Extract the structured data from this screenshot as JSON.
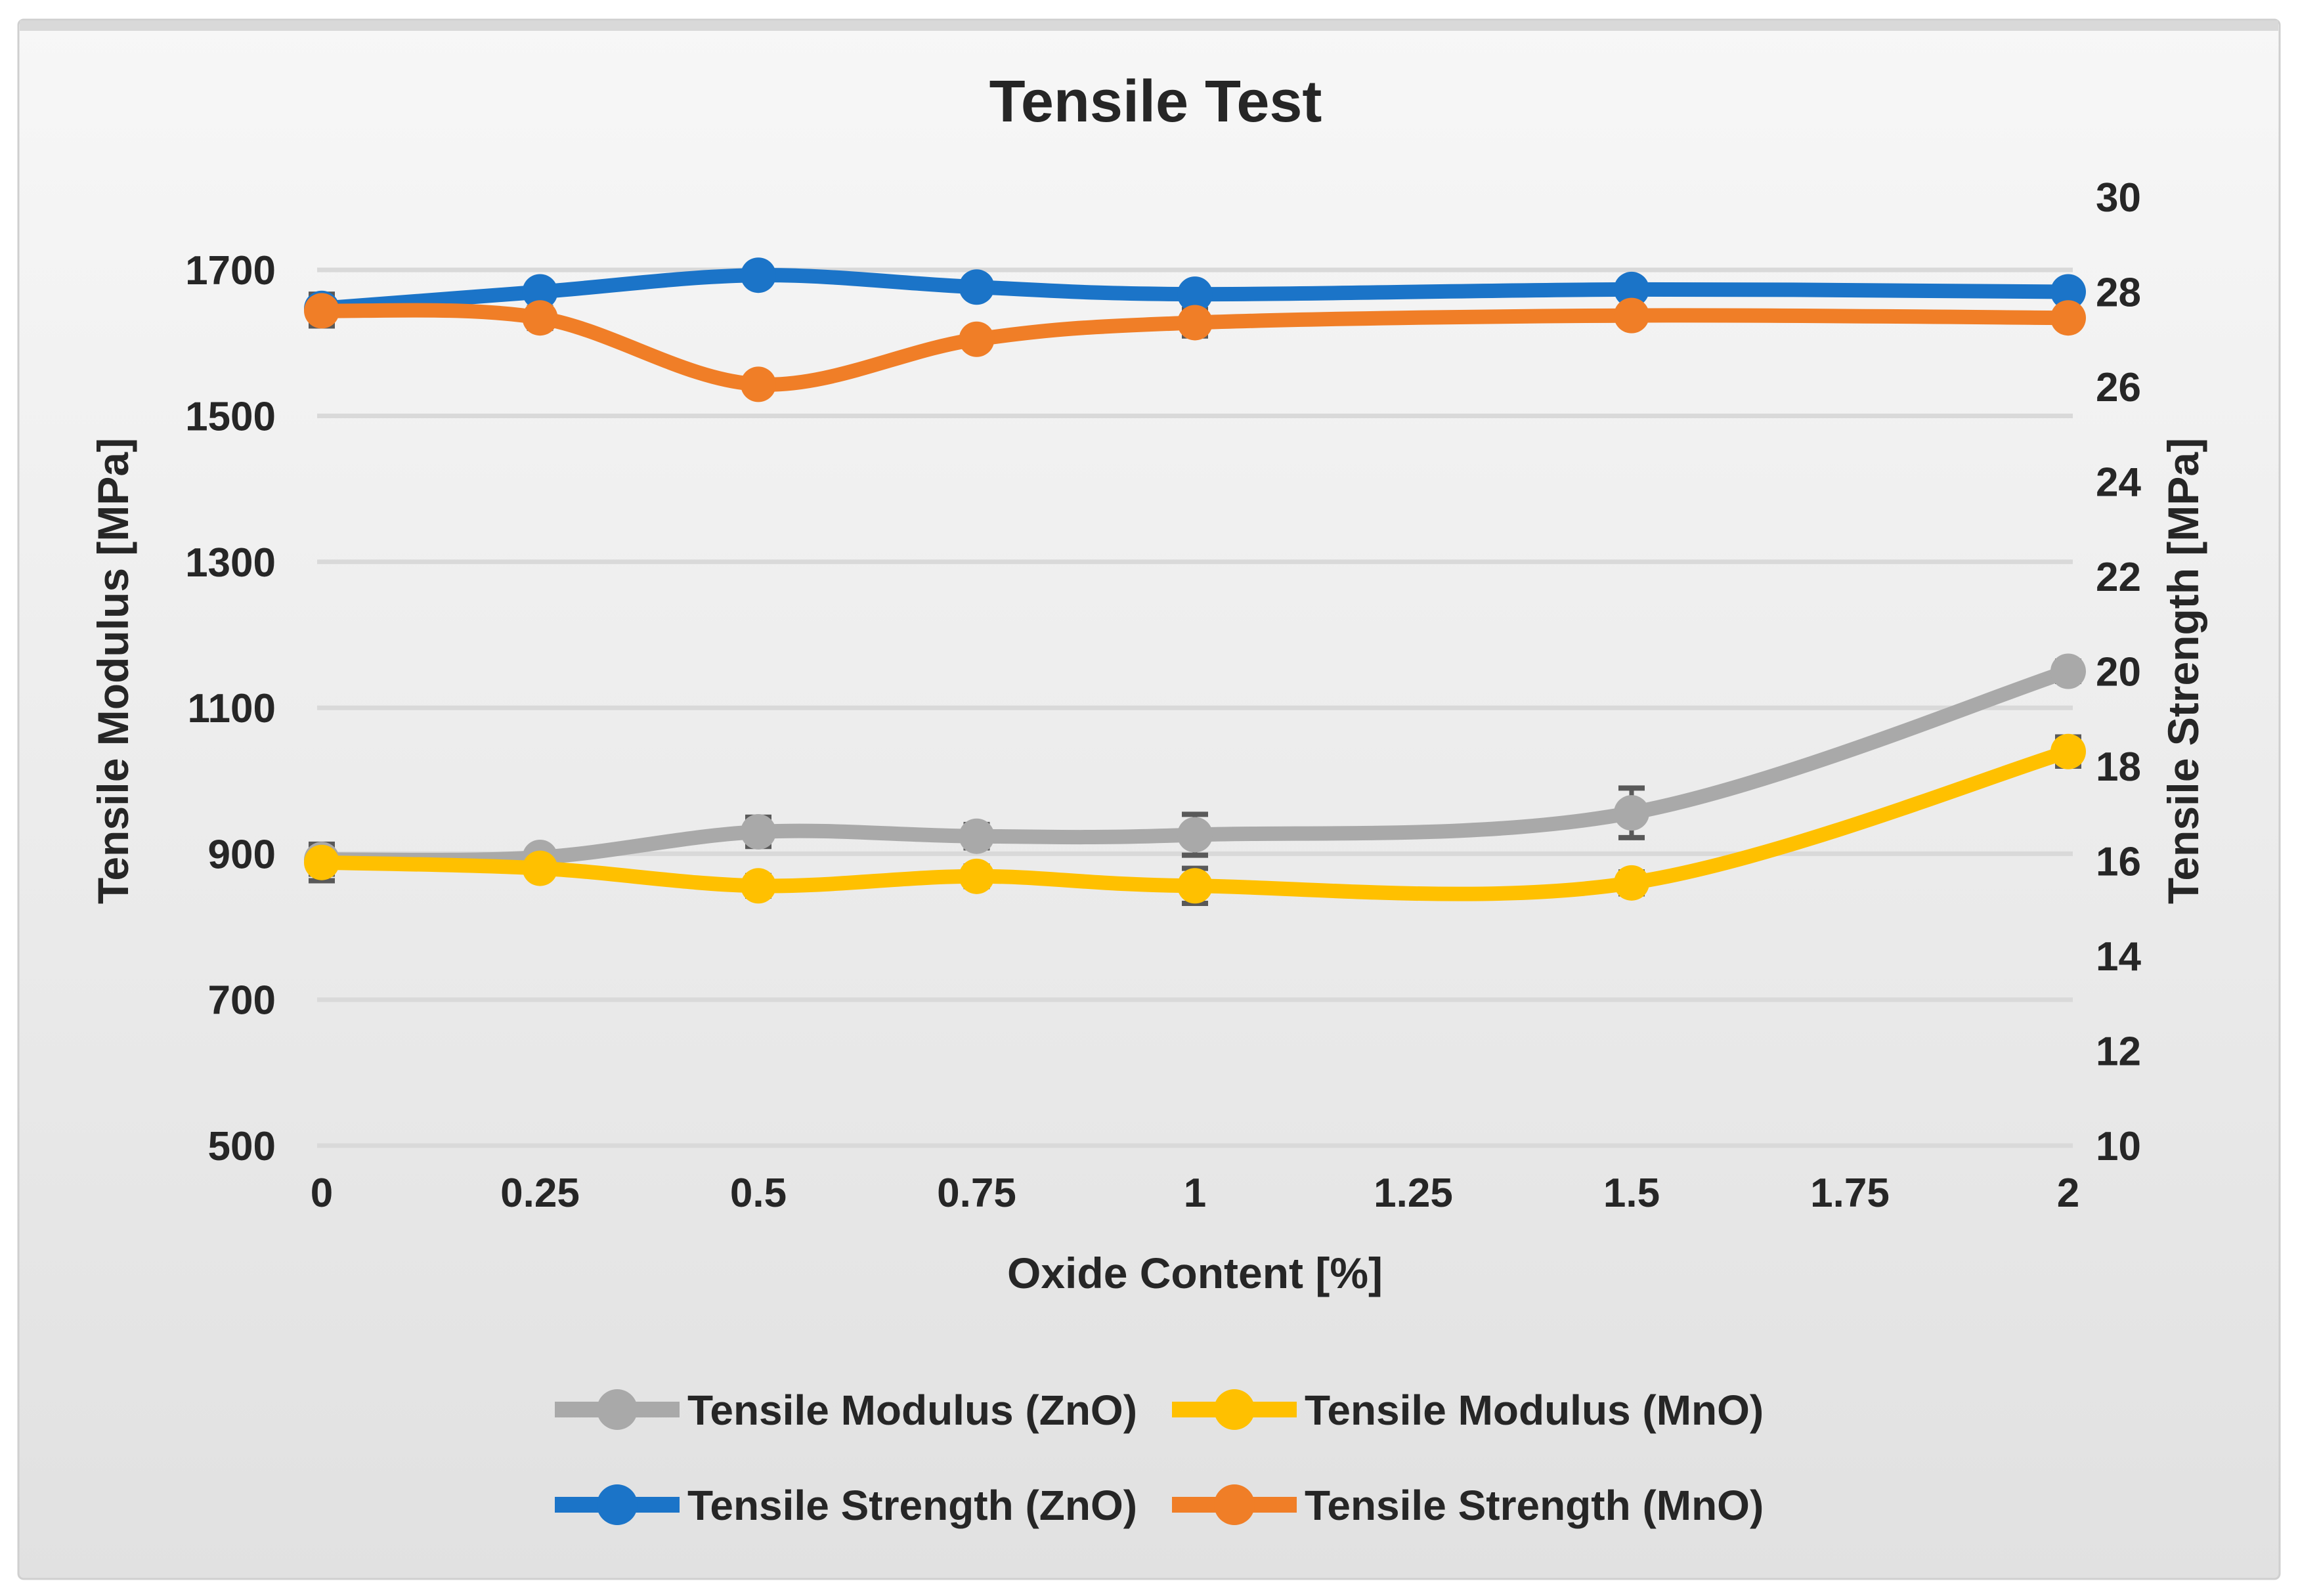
{
  "title": "Tensile Test",
  "axes": {
    "x": {
      "title": "Oxide Content [%]",
      "tick_labels": [
        "0",
        "0.25",
        "0.5",
        "0.75",
        "1",
        "1.25",
        "1.5",
        "1.75",
        "2"
      ],
      "tick_values": [
        0,
        0.25,
        0.5,
        0.75,
        1,
        1.25,
        1.5,
        1.75,
        2
      ],
      "min": 0,
      "max": 2
    },
    "y_left": {
      "title": "Tensile Modulus [MPa]",
      "min": 500,
      "max": 1800,
      "major_unit": 200,
      "tick_labels": [
        "500",
        "700",
        "900",
        "1100",
        "1300",
        "1500",
        "1700"
      ],
      "tick_values": [
        500,
        700,
        900,
        1100,
        1300,
        1500,
        1700
      ]
    },
    "y_right": {
      "title": "Tensile Strength [MPa]",
      "min": 10,
      "max": 30,
      "major_unit": 2,
      "tick_labels": [
        "10",
        "12",
        "14",
        "16",
        "18",
        "20",
        "22",
        "24",
        "26",
        "28",
        "30"
      ],
      "tick_values": [
        10,
        12,
        14,
        16,
        18,
        20,
        22,
        24,
        26,
        28,
        30
      ]
    }
  },
  "chart_data": {
    "type": "line",
    "title": "Tensile Test",
    "xlabel": "Oxide Content [%]",
    "ylabel_left": "Tensile Modulus [MPa]",
    "ylabel_right": "Tensile Strength [MPa]",
    "x": [
      0,
      0.25,
      0.5,
      0.75,
      1,
      1.5,
      2
    ],
    "series": [
      {
        "name": "Tensile Modulus (ZnO)",
        "axis": "left",
        "color": "#A9A9A9",
        "values": [
          892,
          895,
          930,
          924,
          926,
          956,
          1150
        ],
        "error": [
          20,
          12,
          20,
          16,
          28,
          34,
          14
        ]
      },
      {
        "name": "Tensile Modulus (MnO)",
        "axis": "left",
        "color": "#FFC000",
        "values": [
          888,
          880,
          856,
          869,
          856,
          860,
          1040
        ],
        "error": [
          25,
          12,
          14,
          14,
          24,
          15,
          20
        ]
      },
      {
        "name": "Tensile Strength (ZnO)",
        "axis": "right",
        "color": "#1B74C8",
        "values": [
          27.65,
          28.0,
          28.35,
          28.1,
          27.95,
          28.05,
          28.0
        ],
        "error": [
          0.3,
          0.18,
          0.1,
          0.1,
          0.1,
          0.1,
          0.1
        ]
      },
      {
        "name": "Tensile Strength (MnO)",
        "axis": "right",
        "color": "#F07E27",
        "values": [
          27.6,
          27.45,
          26.05,
          27.0,
          27.35,
          27.5,
          27.45
        ],
        "error": [
          0.32,
          0.22,
          0.12,
          0.12,
          0.28,
          0.12,
          0.12
        ]
      }
    ],
    "ylim_left": [
      500,
      1800
    ],
    "ylim_right": [
      10,
      30
    ],
    "grid": true,
    "smooth_lines": true,
    "legend_position": "bottom",
    "legend_rows": [
      [
        0,
        1
      ],
      [
        2,
        3
      ]
    ],
    "error_bar_color": "#595959"
  },
  "colors": {
    "page_background": "#FFFFFF",
    "frame_gradient_top": "#F7F7F7",
    "frame_gradient_mid": "#ECECEC",
    "frame_gradient_bottom": "#E1E1E1",
    "frame_border": "#CFCFCF",
    "frame_top_band": "#D9D9D9",
    "gridline": "#D9D9D9",
    "text": "#262626",
    "error_bar": "#595959"
  }
}
